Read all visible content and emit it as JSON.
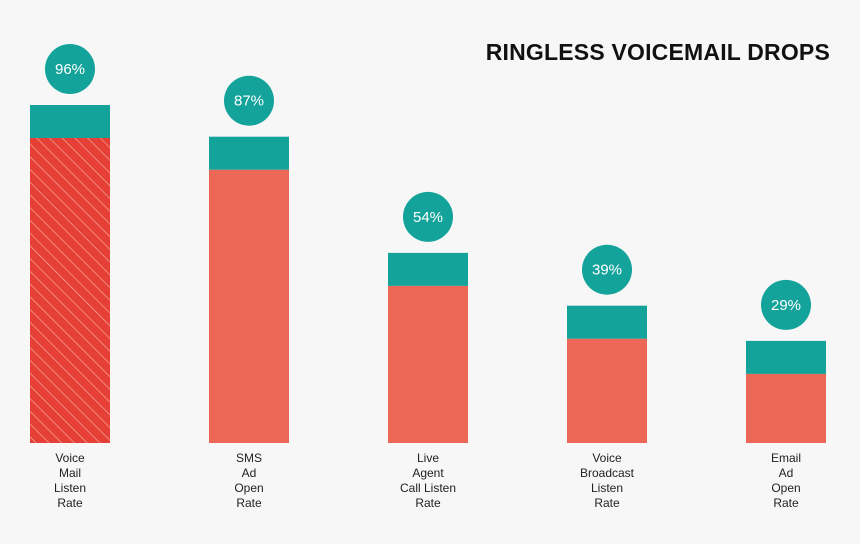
{
  "chart_data": {
    "type": "bar",
    "title": "RINGLESS VOICEMAIL DROPS",
    "categories": [
      [
        "Voice",
        "Mail",
        "Listen",
        "Rate"
      ],
      [
        "SMS",
        "Ad",
        "Open",
        "Rate"
      ],
      [
        "Live",
        "Agent",
        "Call Listen",
        "Rate"
      ],
      [
        "Voice",
        "Broadcast",
        "Listen",
        "Rate"
      ],
      [
        "Email",
        "Ad",
        "Open",
        "Rate"
      ]
    ],
    "values": [
      96,
      87,
      54,
      39,
      29
    ],
    "value_labels": [
      "96%",
      "87%",
      "54%",
      "39%",
      "29%"
    ],
    "highlighted_index": 0,
    "ylim": [
      0,
      100
    ],
    "grid": false,
    "legend": "none",
    "colors": {
      "bar": "#ec6755",
      "bar_highlight": "#e63f35",
      "cap": "#14a39a",
      "badge": "#14a39a",
      "badge_text": "#ffffff",
      "title": "#111111",
      "label": "#222222",
      "background": "#f7f7f7"
    }
  }
}
